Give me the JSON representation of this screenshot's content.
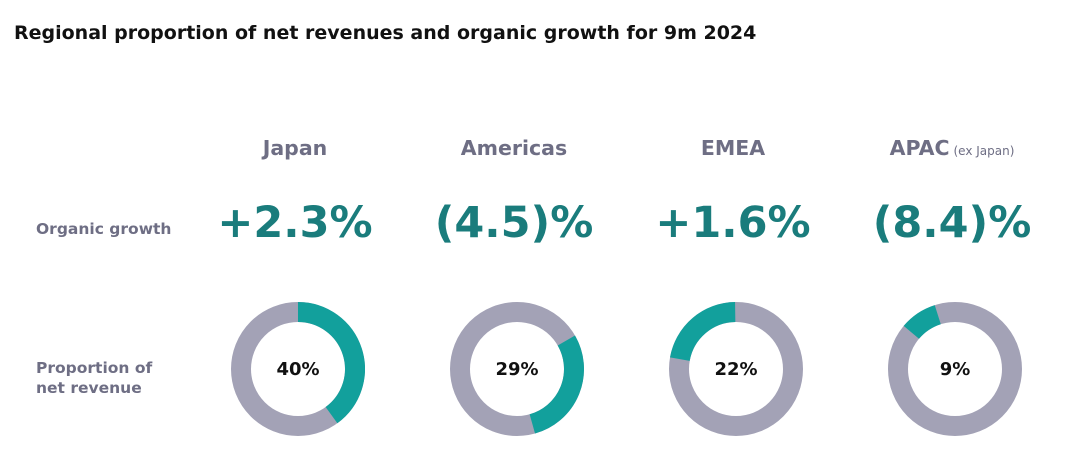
{
  "title": "Regional proportion of net revenues and organic growth for 9m 2024",
  "row_labels": {
    "organic_growth": "Organic growth",
    "proportion_line1": "Proportion of",
    "proportion_line2": "net revenue"
  },
  "colors": {
    "teal": "#12a09c",
    "grey": "#a3a2b6",
    "growth_text": "#1a7c7c",
    "label_text": "#6e6e84"
  },
  "chart_data": {
    "type": "pie",
    "title": "Regional proportion of net revenues and organic growth for 9m 2024",
    "categories": [
      "Japan",
      "Americas",
      "EMEA",
      "APAC"
    ],
    "category_notes": [
      "",
      "",
      "",
      "(ex Japan)"
    ],
    "series": [
      {
        "name": "Organic growth",
        "values": [
          2.3,
          -4.5,
          1.6,
          -8.4
        ],
        "display": [
          "+2.3%",
          "(4.5)%",
          "+1.6%",
          "(8.4)%"
        ]
      },
      {
        "name": "Proportion of net revenue",
        "values": [
          40,
          29,
          22,
          9
        ],
        "display": [
          "40%",
          "29%",
          "22%",
          "9%"
        ]
      }
    ]
  }
}
